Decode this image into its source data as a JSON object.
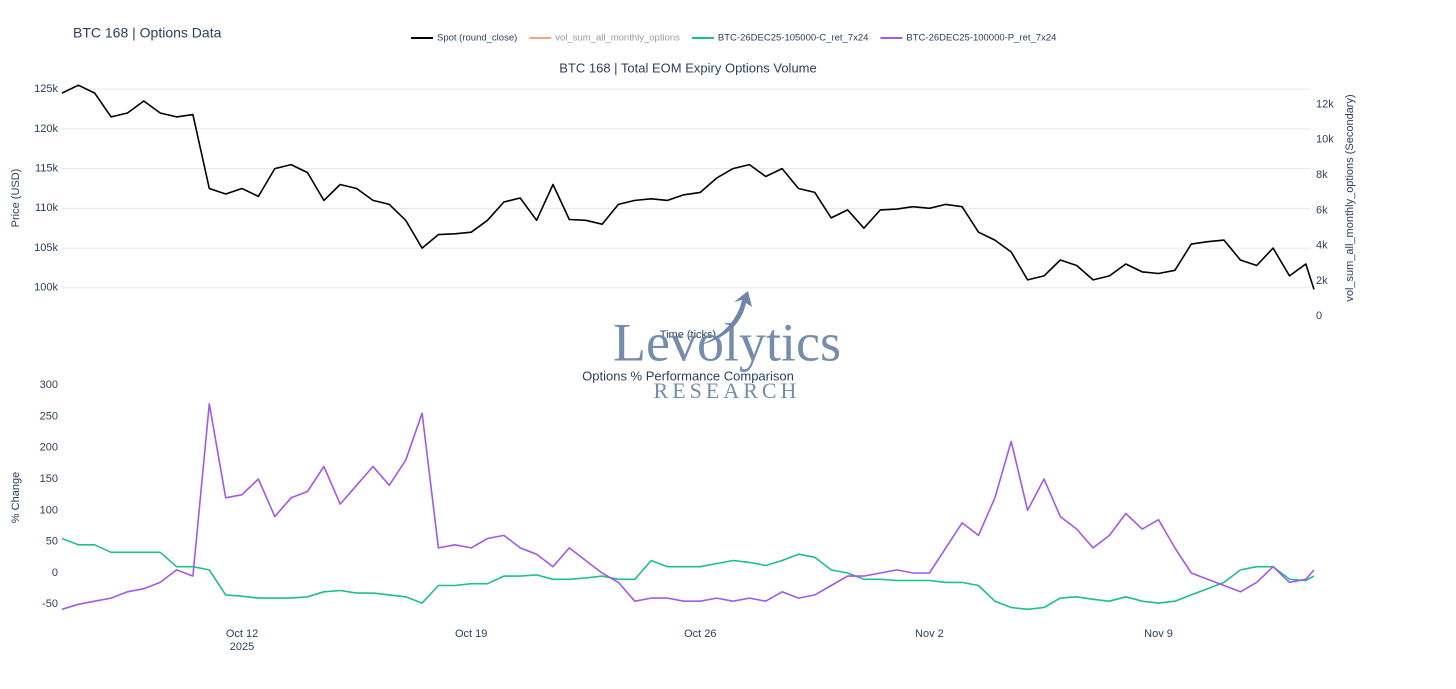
{
  "title": "BTC 168 | Options Data",
  "watermark": {
    "name": "Levolytics",
    "tagline": "RESEARCH"
  },
  "chart_data": [
    {
      "type": "line",
      "title": "BTC 168 | Total EOM Expiry Options Volume",
      "ylabel": "Price (USD)",
      "y2label": "vol_sum_all_monthly_options (Secondary)",
      "xlabel": "Time (ticks)",
      "grid": true,
      "xlim": [
        "2025-10-06T12:00",
        "2025-11-13T18:00"
      ],
      "ylim": [
        96200,
        126400
      ],
      "yticks": [
        {
          "value": 100000,
          "label": "100k"
        },
        {
          "value": 105000,
          "label": "105k"
        },
        {
          "value": 110000,
          "label": "110k"
        },
        {
          "value": 115000,
          "label": "115k"
        },
        {
          "value": 120000,
          "label": "120k"
        },
        {
          "value": 125000,
          "label": "125k"
        }
      ],
      "y2lim": [
        -100,
        13500
      ],
      "y2ticks": [
        0,
        {
          "value": 2000,
          "label": "2k"
        },
        {
          "value": 4000,
          "label": "4k"
        },
        {
          "value": 6000,
          "label": "6k"
        },
        {
          "value": 8000,
          "label": "8k"
        },
        {
          "value": 10000,
          "label": "10k"
        },
        {
          "value": 12000,
          "label": "12k"
        }
      ],
      "x": [
        "2025-10-06T12:00",
        "2025-10-07T00:00",
        "2025-10-07T12:00",
        "2025-10-08T00:00",
        "2025-10-08T12:00",
        "2025-10-09T00:00",
        "2025-10-09T12:00",
        "2025-10-10T00:00",
        "2025-10-10T12:00",
        "2025-10-11T00:00",
        "2025-10-11T12:00",
        "2025-10-12T00:00",
        "2025-10-12T12:00",
        "2025-10-13T00:00",
        "2025-10-13T12:00",
        "2025-10-14T00:00",
        "2025-10-14T12:00",
        "2025-10-15T00:00",
        "2025-10-15T12:00",
        "2025-10-16T00:00",
        "2025-10-16T12:00",
        "2025-10-17T00:00",
        "2025-10-17T12:00",
        "2025-10-18T00:00",
        "2025-10-18T12:00",
        "2025-10-19T00:00",
        "2025-10-19T12:00",
        "2025-10-20T00:00",
        "2025-10-20T12:00",
        "2025-10-21T00:00",
        "2025-10-21T12:00",
        "2025-10-22T00:00",
        "2025-10-22T12:00",
        "2025-10-23T00:00",
        "2025-10-23T12:00",
        "2025-10-24T00:00",
        "2025-10-24T12:00",
        "2025-10-25T00:00",
        "2025-10-25T12:00",
        "2025-10-26T00:00",
        "2025-10-26T12:00",
        "2025-10-27T00:00",
        "2025-10-27T12:00",
        "2025-10-28T00:00",
        "2025-10-28T12:00",
        "2025-10-29T00:00",
        "2025-10-29T12:00",
        "2025-10-30T00:00",
        "2025-10-30T12:00",
        "2025-10-31T00:00",
        "2025-10-31T12:00",
        "2025-11-01T00:00",
        "2025-11-01T12:00",
        "2025-11-02T00:00",
        "2025-11-02T12:00",
        "2025-11-03T00:00",
        "2025-11-03T12:00",
        "2025-11-04T00:00",
        "2025-11-04T12:00",
        "2025-11-05T00:00",
        "2025-11-05T12:00",
        "2025-11-06T00:00",
        "2025-11-06T12:00",
        "2025-11-07T00:00",
        "2025-11-07T12:00",
        "2025-11-08T00:00",
        "2025-11-08T12:00",
        "2025-11-09T00:00",
        "2025-11-09T12:00",
        "2025-11-10T00:00",
        "2025-11-10T12:00",
        "2025-11-11T00:00",
        "2025-11-11T12:00",
        "2025-11-12T00:00",
        "2025-11-12T12:00",
        "2025-11-13T00:00",
        "2025-11-13T12:00",
        "2025-11-13T18:00"
      ],
      "series": [
        {
          "name": "Spot (round_close)",
          "color": "#000000",
          "values": [
            124500,
            125500,
            124500,
            121500,
            122000,
            123500,
            122000,
            121500,
            121800,
            112500,
            111800,
            112500,
            111500,
            115000,
            115500,
            114500,
            111000,
            113000,
            112500,
            111000,
            110500,
            108500,
            105000,
            106700,
            106800,
            107000,
            108500,
            110800,
            111300,
            108500,
            113000,
            108600,
            108500,
            108000,
            110500,
            111000,
            111200,
            111000,
            111700,
            112000,
            113800,
            115000,
            115500,
            114000,
            115000,
            112500,
            112000,
            108800,
            109800,
            107500,
            109800,
            109900,
            110200,
            110000,
            110500,
            110200,
            107000,
            106000,
            104500,
            101000,
            101500,
            103500,
            102800,
            101000,
            101500,
            103000,
            102000,
            101800,
            102200,
            105500,
            105800,
            106000,
            103500,
            102800,
            105000,
            101500,
            103000,
            99800
          ]
        },
        {
          "name": "vol_sum_all_monthly_options",
          "color": "#f4a582",
          "axis": "y2",
          "values": [
            null,
            null,
            null,
            null,
            null,
            null,
            null,
            null,
            null,
            null,
            null,
            null,
            null,
            null,
            null,
            null,
            null,
            null,
            null,
            null,
            null,
            null,
            null,
            null,
            null,
            null,
            null,
            null,
            null,
            null,
            null,
            null,
            null,
            null,
            null,
            null,
            null,
            null,
            null,
            null,
            null,
            null,
            null,
            null,
            null,
            null,
            null,
            null,
            null,
            null,
            null,
            null,
            null,
            null,
            null,
            null,
            null,
            null,
            null,
            null,
            null,
            null,
            null,
            null,
            null,
            null,
            null,
            null,
            null,
            null,
            null,
            null,
            null,
            null,
            null,
            null,
            null,
            null
          ]
        }
      ]
    },
    {
      "type": "line",
      "title": "Options % Performance Comparison",
      "ylabel": "% Change",
      "grid": false,
      "x_year_label": "2025",
      "xlim": [
        "2025-10-06T12:00",
        "2025-11-13T18:00"
      ],
      "ylim": [
        -75,
        316
      ],
      "yticks": [
        -50,
        0,
        50,
        100,
        150,
        200,
        250,
        300
      ],
      "xticks": [
        {
          "value": "2025-10-12T00:00",
          "label": "Oct 12"
        },
        {
          "value": "2025-10-19T00:00",
          "label": "Oct 19"
        },
        {
          "value": "2025-10-26T00:00",
          "label": "Oct 26"
        },
        {
          "value": "2025-11-02T00:00",
          "label": "Nov 2"
        },
        {
          "value": "2025-11-09T00:00",
          "label": "Nov 9"
        }
      ],
      "x": [
        "2025-10-06T12:00",
        "2025-10-07T00:00",
        "2025-10-07T12:00",
        "2025-10-08T00:00",
        "2025-10-08T12:00",
        "2025-10-09T00:00",
        "2025-10-09T12:00",
        "2025-10-10T00:00",
        "2025-10-10T12:00",
        "2025-10-11T00:00",
        "2025-10-11T12:00",
        "2025-10-12T00:00",
        "2025-10-12T12:00",
        "2025-10-13T00:00",
        "2025-10-13T12:00",
        "2025-10-14T00:00",
        "2025-10-14T12:00",
        "2025-10-15T00:00",
        "2025-10-15T12:00",
        "2025-10-16T00:00",
        "2025-10-16T12:00",
        "2025-10-17T00:00",
        "2025-10-17T12:00",
        "2025-10-18T00:00",
        "2025-10-18T12:00",
        "2025-10-19T00:00",
        "2025-10-19T12:00",
        "2025-10-20T00:00",
        "2025-10-20T12:00",
        "2025-10-21T00:00",
        "2025-10-21T12:00",
        "2025-10-22T00:00",
        "2025-10-22T12:00",
        "2025-10-23T00:00",
        "2025-10-23T12:00",
        "2025-10-24T00:00",
        "2025-10-24T12:00",
        "2025-10-25T00:00",
        "2025-10-25T12:00",
        "2025-10-26T00:00",
        "2025-10-26T12:00",
        "2025-10-27T00:00",
        "2025-10-27T12:00",
        "2025-10-28T00:00",
        "2025-10-28T12:00",
        "2025-10-29T00:00",
        "2025-10-29T12:00",
        "2025-10-30T00:00",
        "2025-10-30T12:00",
        "2025-10-31T00:00",
        "2025-10-31T12:00",
        "2025-11-01T00:00",
        "2025-11-01T12:00",
        "2025-11-02T00:00",
        "2025-11-02T12:00",
        "2025-11-03T00:00",
        "2025-11-03T12:00",
        "2025-11-04T00:00",
        "2025-11-04T12:00",
        "2025-11-05T00:00",
        "2025-11-05T12:00",
        "2025-11-06T00:00",
        "2025-11-06T12:00",
        "2025-11-07T00:00",
        "2025-11-07T12:00",
        "2025-11-08T00:00",
        "2025-11-08T12:00",
        "2025-11-09T00:00",
        "2025-11-09T12:00",
        "2025-11-10T00:00",
        "2025-11-10T12:00",
        "2025-11-11T00:00",
        "2025-11-11T12:00",
        "2025-11-12T00:00",
        "2025-11-12T12:00",
        "2025-11-13T00:00",
        "2025-11-13T12:00",
        "2025-11-13T18:00"
      ],
      "series": [
        {
          "name": "BTC-26DEC25-105000-C_ret_7x24",
          "color": "#1dbf8a",
          "values": [
            55,
            45,
            45,
            33,
            33,
            33,
            33,
            10,
            10,
            5,
            -35,
            -37,
            -40,
            -40,
            -40,
            -38,
            -30,
            -28,
            -32,
            -32,
            -35,
            -38,
            -48,
            -20,
            -20,
            -17,
            -17,
            -5,
            -5,
            -3,
            -10,
            -10,
            -8,
            -5,
            -10,
            -10,
            20,
            10,
            10,
            10,
            15,
            20,
            17,
            12,
            20,
            30,
            25,
            5,
            0,
            -10,
            -10,
            -12,
            -12,
            -12,
            -15,
            -15,
            -20,
            -45,
            -55,
            -58,
            -55,
            -40,
            -38,
            -42,
            -45,
            -38,
            -45,
            -48,
            -45,
            -35,
            -25,
            -15,
            5,
            10,
            10,
            -10,
            -12,
            -5
          ]
        },
        {
          "name": "BTC-26DEC25-100000-P_ret_7x24",
          "color": "#a259e6",
          "values": [
            -58,
            -50,
            -45,
            -40,
            -30,
            -25,
            -15,
            5,
            -5,
            270,
            120,
            125,
            150,
            90,
            120,
            130,
            170,
            110,
            140,
            170,
            140,
            180,
            255,
            40,
            45,
            40,
            55,
            60,
            40,
            30,
            10,
            40,
            20,
            0,
            -15,
            -45,
            -40,
            -40,
            -45,
            -45,
            -40,
            -45,
            -40,
            -45,
            -30,
            -40,
            -35,
            -20,
            -5,
            -5,
            0,
            5,
            0,
            0,
            40,
            80,
            60,
            120,
            210,
            100,
            150,
            90,
            70,
            40,
            60,
            95,
            70,
            85,
            40,
            0,
            -10,
            -20,
            -30,
            -15,
            10,
            -15,
            -10,
            5
          ]
        }
      ]
    }
  ]
}
